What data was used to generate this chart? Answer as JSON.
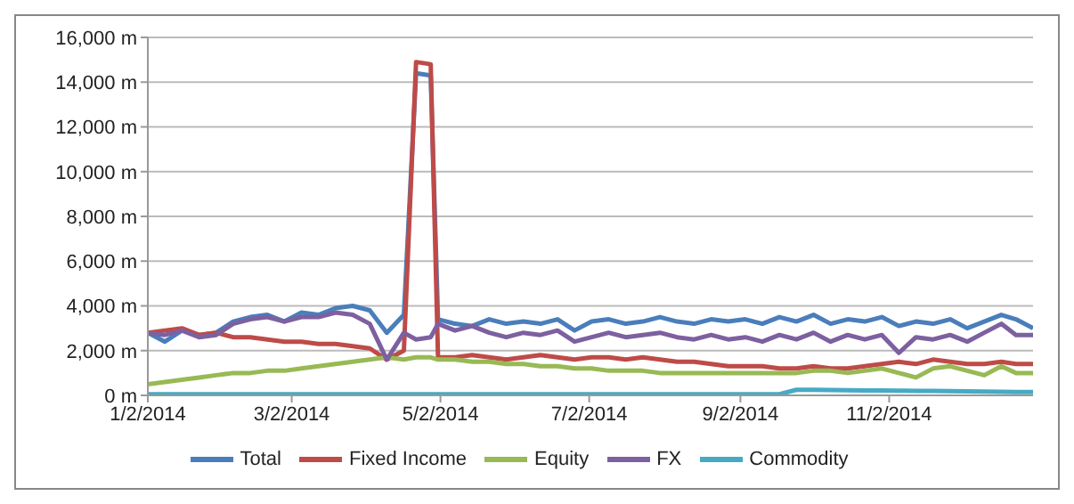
{
  "chart_data": {
    "type": "line",
    "grid": "y",
    "legend": "bottom",
    "marker": "none",
    "line_style": "solid",
    "x": [
      "2014-01-02",
      "2014-01-09",
      "2014-01-16",
      "2014-01-23",
      "2014-01-30",
      "2014-02-06",
      "2014-02-13",
      "2014-02-20",
      "2014-02-27",
      "2014-03-06",
      "2014-03-13",
      "2014-03-20",
      "2014-03-27",
      "2014-04-03",
      "2014-04-10",
      "2014-04-17",
      "2014-04-22",
      "2014-04-28",
      "2014-05-01",
      "2014-05-08",
      "2014-05-15",
      "2014-05-22",
      "2014-05-29",
      "2014-06-05",
      "2014-06-12",
      "2014-06-19",
      "2014-06-26",
      "2014-07-03",
      "2014-07-10",
      "2014-07-17",
      "2014-07-24",
      "2014-07-31",
      "2014-08-07",
      "2014-08-14",
      "2014-08-21",
      "2014-08-28",
      "2014-09-04",
      "2014-09-11",
      "2014-09-18",
      "2014-09-25",
      "2014-10-02",
      "2014-10-09",
      "2014-10-16",
      "2014-10-23",
      "2014-10-30",
      "2014-11-06",
      "2014-11-13",
      "2014-11-20",
      "2014-11-27",
      "2014-12-04",
      "2014-12-11",
      "2014-12-18",
      "2014-12-24",
      "2014-12-31"
    ],
    "xlim": [
      "2014-01-02",
      "2014-12-31"
    ],
    "xticks": [
      {
        "value": "2014-01-02",
        "label": "1/2/2014"
      },
      {
        "value": "2014-03-02",
        "label": "3/2/2014"
      },
      {
        "value": "2014-05-02",
        "label": "5/2/2014"
      },
      {
        "value": "2014-07-02",
        "label": "7/2/2014"
      },
      {
        "value": "2014-09-02",
        "label": "9/2/2014"
      },
      {
        "value": "2014-11-02",
        "label": "11/2/2014"
      }
    ],
    "ylim": [
      0,
      16000
    ],
    "yticks": [
      {
        "value": 0,
        "label": "0 m"
      },
      {
        "value": 2000,
        "label": "2,000 m"
      },
      {
        "value": 4000,
        "label": "4,000 m"
      },
      {
        "value": 6000,
        "label": "6,000 m"
      },
      {
        "value": 8000,
        "label": "8,000 m"
      },
      {
        "value": 10000,
        "label": "10,000 m"
      },
      {
        "value": 12000,
        "label": "12,000 m"
      },
      {
        "value": 14000,
        "label": "14,000 m"
      },
      {
        "value": 16000,
        "label": "16,000 m"
      }
    ],
    "series": [
      {
        "name": "Total",
        "color": "#4a7ebb",
        "values": [
          2800,
          2400,
          2900,
          2700,
          2800,
          3300,
          3500,
          3600,
          3300,
          3700,
          3600,
          3900,
          4000,
          3800,
          2800,
          3600,
          14400,
          14300,
          3400,
          3200,
          3100,
          3400,
          3200,
          3300,
          3200,
          3400,
          2900,
          3300,
          3400,
          3200,
          3300,
          3500,
          3300,
          3200,
          3400,
          3300,
          3400,
          3200,
          3500,
          3300,
          3600,
          3200,
          3400,
          3300,
          3500,
          3100,
          3300,
          3200,
          3400,
          3000,
          3300,
          3600,
          3400,
          3000
        ]
      },
      {
        "name": "Fixed Income",
        "color": "#be4b48",
        "values": [
          2800,
          2900,
          3000,
          2700,
          2800,
          2600,
          2600,
          2500,
          2400,
          2400,
          2300,
          2300,
          2200,
          2100,
          1600,
          2000,
          14900,
          14800,
          1700,
          1700,
          1800,
          1700,
          1600,
          1700,
          1800,
          1700,
          1600,
          1700,
          1700,
          1600,
          1700,
          1600,
          1500,
          1500,
          1400,
          1300,
          1300,
          1300,
          1200,
          1200,
          1300,
          1200,
          1200,
          1300,
          1400,
          1500,
          1400,
          1600,
          1500,
          1400,
          1400,
          1500,
          1400,
          1400
        ]
      },
      {
        "name": "Equity",
        "color": "#98b954",
        "values": [
          500,
          600,
          700,
          800,
          900,
          1000,
          1000,
          1100,
          1100,
          1200,
          1300,
          1400,
          1500,
          1600,
          1700,
          1600,
          1700,
          1700,
          1600,
          1600,
          1500,
          1500,
          1400,
          1400,
          1300,
          1300,
          1200,
          1200,
          1100,
          1100,
          1100,
          1000,
          1000,
          1000,
          1000,
          1000,
          1000,
          1000,
          1000,
          1000,
          1100,
          1100,
          1000,
          1100,
          1200,
          1000,
          800,
          1200,
          1300,
          1100,
          900,
          1300,
          1000,
          1000
        ]
      },
      {
        "name": "FX",
        "color": "#7d60a0",
        "values": [
          2800,
          2700,
          2900,
          2600,
          2700,
          3200,
          3400,
          3500,
          3300,
          3500,
          3500,
          3700,
          3600,
          3200,
          1600,
          2800,
          2500,
          2600,
          3200,
          2900,
          3100,
          2800,
          2600,
          2800,
          2700,
          2900,
          2400,
          2600,
          2800,
          2600,
          2700,
          2800,
          2600,
          2500,
          2700,
          2500,
          2600,
          2400,
          2700,
          2500,
          2800,
          2400,
          2700,
          2500,
          2700,
          1900,
          2600,
          2500,
          2700,
          2400,
          2800,
          3200,
          2700,
          2700
        ]
      },
      {
        "name": "Commodity",
        "color": "#46aac5",
        "values": [
          50,
          50,
          50,
          50,
          50,
          50,
          50,
          50,
          50,
          50,
          50,
          50,
          50,
          50,
          50,
          50,
          50,
          50,
          50,
          50,
          50,
          50,
          50,
          50,
          50,
          50,
          50,
          50,
          50,
          50,
          50,
          50,
          50,
          50,
          50,
          50,
          50,
          50,
          50,
          250,
          250,
          240,
          230,
          220,
          220,
          210,
          200,
          200,
          190,
          180,
          170,
          160,
          150,
          150
        ]
      }
    ]
  }
}
